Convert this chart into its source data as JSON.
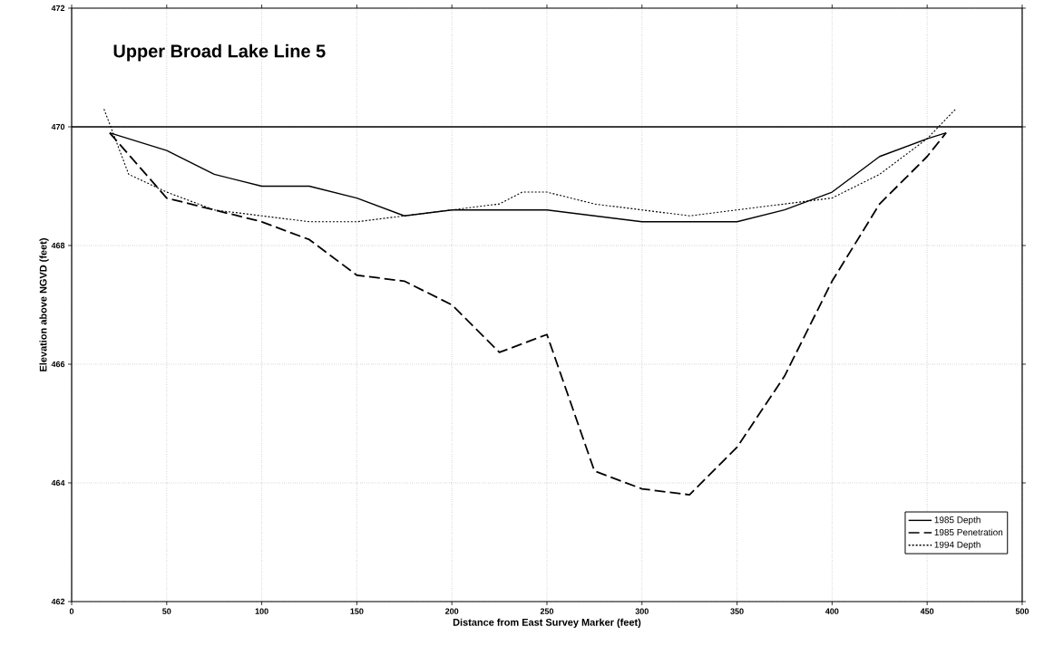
{
  "chart_data": {
    "type": "line",
    "title": "Upper Broad Lake Line 5",
    "xlabel": "Distance from East Survey Marker (feet)",
    "ylabel": "Elevation above NGVD (feet)",
    "xlim": [
      0,
      500
    ],
    "xticks": [
      0,
      50,
      100,
      150,
      200,
      250,
      300,
      350,
      400,
      450,
      500
    ],
    "ylim": [
      462,
      472
    ],
    "yticks": [
      462,
      464,
      466,
      468,
      470,
      472
    ],
    "grid": true,
    "legend": "bottom right",
    "ref_lines": [
      {
        "axis": "y",
        "value": 470,
        "color": "#000000"
      }
    ],
    "series": [
      {
        "name": "1985 Depth",
        "color": "#000000",
        "line_style": "solid",
        "x": [
          20,
          50,
          75,
          100,
          125,
          150,
          175,
          200,
          225,
          250,
          275,
          300,
          325,
          350,
          375,
          400,
          425,
          450,
          460
        ],
        "values": [
          469.9,
          469.6,
          469.2,
          469.0,
          469.0,
          468.8,
          468.5,
          468.6,
          468.6,
          468.6,
          468.5,
          468.4,
          468.4,
          468.4,
          468.6,
          468.9,
          469.5,
          469.8,
          469.9
        ]
      },
      {
        "name": "1985 Penetration",
        "color": "#000000",
        "line_style": "dashed",
        "x": [
          20,
          50,
          75,
          100,
          125,
          150,
          175,
          200,
          225,
          250,
          275,
          300,
          325,
          350,
          375,
          400,
          425,
          450,
          460
        ],
        "values": [
          469.9,
          468.8,
          468.6,
          468.4,
          468.1,
          467.5,
          467.4,
          467.0,
          466.2,
          466.5,
          464.2,
          463.9,
          463.8,
          464.6,
          465.8,
          467.4,
          468.7,
          469.5,
          469.9
        ]
      },
      {
        "name": "1994 Depth",
        "color": "#000000",
        "line_style": "dotted",
        "x": [
          17,
          30,
          50,
          75,
          100,
          125,
          150,
          175,
          200,
          225,
          237,
          250,
          275,
          300,
          325,
          350,
          375,
          400,
          425,
          450,
          465
        ],
        "values": [
          470.3,
          469.2,
          468.9,
          468.6,
          468.5,
          468.4,
          468.4,
          468.5,
          468.6,
          468.7,
          468.9,
          468.9,
          468.7,
          468.6,
          468.5,
          468.6,
          468.7,
          468.8,
          469.2,
          469.8,
          470.3
        ]
      }
    ]
  }
}
